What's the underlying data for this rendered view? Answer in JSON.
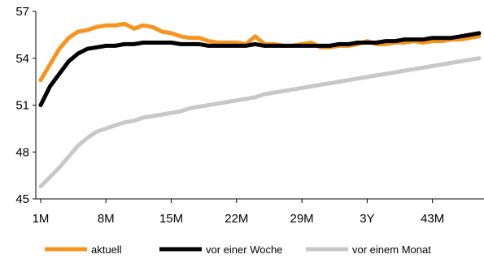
{
  "chart_data": {
    "type": "line",
    "title": "",
    "xlabel": "",
    "ylabel": "",
    "x_tick_labels": [
      "1M",
      "8M",
      "15M",
      "22M",
      "29M",
      "3Y",
      "43M"
    ],
    "x_tick_positions": [
      1,
      8,
      15,
      22,
      29,
      36,
      43
    ],
    "xlim": [
      1,
      48
    ],
    "ylim": [
      45,
      57
    ],
    "y_ticks": [
      45,
      48,
      51,
      54,
      57
    ],
    "grid": false,
    "legend_position": "bottom",
    "series": [
      {
        "name": "aktuell",
        "color": "#F7941D",
        "x": [
          1,
          2,
          3,
          4,
          5,
          6,
          7,
          8,
          9,
          10,
          11,
          12,
          13,
          14,
          15,
          16,
          17,
          18,
          19,
          20,
          21,
          22,
          23,
          24,
          25,
          26,
          27,
          28,
          29,
          30,
          31,
          32,
          33,
          34,
          35,
          36,
          37,
          38,
          39,
          40,
          41,
          42,
          43,
          44,
          45,
          46,
          47,
          48
        ],
        "values": [
          52.6,
          53.6,
          54.6,
          55.3,
          55.7,
          55.8,
          56.0,
          56.1,
          56.1,
          56.2,
          55.9,
          56.1,
          56.0,
          55.7,
          55.6,
          55.4,
          55.3,
          55.3,
          55.1,
          55.0,
          55.0,
          55.0,
          54.9,
          55.4,
          54.9,
          54.9,
          54.8,
          54.8,
          54.9,
          55.0,
          54.7,
          54.7,
          54.8,
          54.8,
          54.9,
          55.1,
          54.9,
          54.9,
          55.0,
          55.0,
          55.1,
          55.0,
          55.1,
          55.1,
          55.2,
          55.2,
          55.3,
          55.4
        ]
      },
      {
        "name": "vor einer Woche",
        "color": "#000000",
        "x": [
          1,
          2,
          3,
          4,
          5,
          6,
          7,
          8,
          9,
          10,
          11,
          12,
          13,
          14,
          15,
          16,
          17,
          18,
          19,
          20,
          21,
          22,
          23,
          24,
          25,
          26,
          27,
          28,
          29,
          30,
          31,
          32,
          33,
          34,
          35,
          36,
          37,
          38,
          39,
          40,
          41,
          42,
          43,
          44,
          45,
          46,
          47,
          48
        ],
        "values": [
          51.0,
          52.2,
          53.0,
          53.8,
          54.3,
          54.6,
          54.7,
          54.8,
          54.8,
          54.9,
          54.9,
          55.0,
          55.0,
          55.0,
          55.0,
          54.9,
          54.9,
          54.9,
          54.8,
          54.8,
          54.8,
          54.8,
          54.8,
          54.9,
          54.8,
          54.8,
          54.8,
          54.8,
          54.8,
          54.8,
          54.8,
          54.8,
          54.9,
          54.9,
          55.0,
          55.0,
          55.0,
          55.1,
          55.1,
          55.2,
          55.2,
          55.2,
          55.3,
          55.3,
          55.3,
          55.4,
          55.5,
          55.6
        ]
      },
      {
        "name": "vor einem Monat",
        "color": "#C8C8C8",
        "x": [
          1,
          2,
          3,
          4,
          5,
          6,
          7,
          8,
          9,
          10,
          11,
          12,
          13,
          14,
          15,
          16,
          17,
          18,
          19,
          20,
          21,
          22,
          23,
          24,
          25,
          26,
          27,
          28,
          29,
          30,
          31,
          32,
          33,
          34,
          35,
          36,
          37,
          38,
          39,
          40,
          41,
          42,
          43,
          44,
          45,
          46,
          47,
          48
        ],
        "values": [
          45.8,
          46.4,
          47.0,
          47.7,
          48.4,
          48.9,
          49.3,
          49.5,
          49.7,
          49.9,
          50.0,
          50.2,
          50.3,
          50.4,
          50.5,
          50.6,
          50.8,
          50.9,
          51.0,
          51.1,
          51.2,
          51.3,
          51.4,
          51.5,
          51.7,
          51.8,
          51.9,
          52.0,
          52.1,
          52.2,
          52.3,
          52.4,
          52.5,
          52.6,
          52.7,
          52.8,
          52.9,
          53.0,
          53.1,
          53.2,
          53.3,
          53.4,
          53.5,
          53.6,
          53.7,
          53.8,
          53.9,
          54.0
        ]
      }
    ]
  }
}
